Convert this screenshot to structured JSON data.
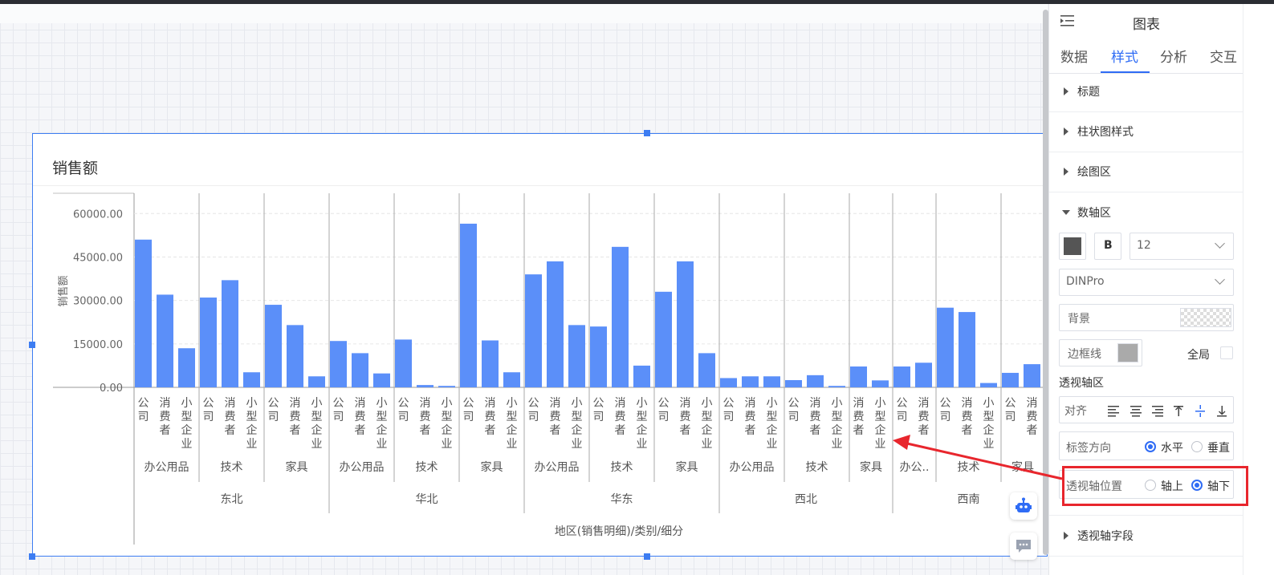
{
  "window": {
    "panel_title": "图表"
  },
  "panel": {
    "tabs": [
      "数据",
      "样式",
      "分析",
      "交互"
    ],
    "active_tab": "样式",
    "sections": {
      "title": "标题",
      "bar_style": "柱状图样式",
      "plot_area": "绘图区",
      "axis_area": "数轴区",
      "pivot_axis_field": "透视轴字段"
    },
    "axis": {
      "bold_label": "B",
      "font_size": "12",
      "font_family": "DINPro",
      "background_label": "背景",
      "border_label": "边框线",
      "global_label": "全局",
      "font_color": "#555555"
    },
    "pivot": {
      "heading": "透视轴区",
      "align_label": "对齐",
      "label_direction_label": "标签方向",
      "horizontal": "水平",
      "vertical": "垂直",
      "position_label": "透视轴位置",
      "above": "轴上",
      "below": "轴下"
    }
  },
  "chart": {
    "title": "销售额",
    "ylabel": "销售额",
    "xlabel": "地区(销售明细)/类别/细分"
  },
  "chart_data": {
    "type": "bar",
    "color": "#5b8ff9",
    "ylabel": "销售额",
    "xlabel": "地区(销售明细)/类别/细分",
    "y_ticks": [
      "60000.00",
      "45000.00",
      "30000.00",
      "15000.00",
      "0.00"
    ],
    "ylim": [
      0,
      67000
    ],
    "grid": true,
    "regions": [
      {
        "name": "东北",
        "categories": [
          {
            "name": "办公用品",
            "segments": [
              "公司",
              "消费者",
              "小型企业"
            ],
            "values": [
              51000,
              32000,
              13500
            ]
          },
          {
            "name": "技术",
            "segments": [
              "公司",
              "消费者",
              "小型企业"
            ],
            "values": [
              31000,
              37000,
              5200
            ]
          },
          {
            "name": "家具",
            "segments": [
              "公司",
              "消费者",
              "小型企业"
            ],
            "values": [
              28500,
              21500,
              3800
            ]
          }
        ]
      },
      {
        "name": "华北",
        "categories": [
          {
            "name": "办公用品",
            "segments": [
              "公司",
              "消费者",
              "小型企业"
            ],
            "values": [
              16000,
              11800,
              4800
            ]
          },
          {
            "name": "技术",
            "segments": [
              "公司",
              "消费者",
              "小型企业"
            ],
            "values": [
              16500,
              800,
              500
            ]
          },
          {
            "name": "家具",
            "segments": [
              "公司",
              "消费者",
              "小型企业"
            ],
            "values": [
              56500,
              16200,
              5200
            ]
          }
        ]
      },
      {
        "name": "华东",
        "categories": [
          {
            "name": "办公用品",
            "segments": [
              "公司",
              "消费者",
              "小型企业"
            ],
            "values": [
              39000,
              43500,
              21500
            ]
          },
          {
            "name": "技术",
            "segments": [
              "公司",
              "消费者",
              "小型企业"
            ],
            "values": [
              21000,
              48500,
              7500
            ]
          },
          {
            "name": "家具",
            "segments": [
              "公司",
              "消费者",
              "小型企业"
            ],
            "values": [
              33000,
              43500,
              11800
            ]
          }
        ]
      },
      {
        "name": "西北",
        "categories": [
          {
            "name": "办公用品",
            "segments": [
              "公司",
              "消费者",
              "小型企业"
            ],
            "values": [
              3200,
              3800,
              3800
            ]
          },
          {
            "name": "技术",
            "segments": [
              "公司",
              "消费者",
              "小型企业"
            ],
            "values": [
              2500,
              4200,
              500
            ]
          },
          {
            "name": "家具",
            "segments": [
              "消费者",
              "小型企业"
            ],
            "values": [
              7200,
              2400
            ]
          }
        ]
      },
      {
        "name": "西南",
        "categories": [
          {
            "name": "办公..",
            "segments": [
              "公司",
              "消费者"
            ],
            "values": [
              7200,
              8500
            ]
          },
          {
            "name": "技术",
            "segments": [
              "公司",
              "消费者",
              "小型企业"
            ],
            "values": [
              27500,
              26000,
              1500
            ]
          },
          {
            "name": "家具",
            "segments": [
              "公司",
              "消费者"
            ],
            "values": [
              5000,
              8000
            ]
          }
        ]
      }
    ]
  }
}
